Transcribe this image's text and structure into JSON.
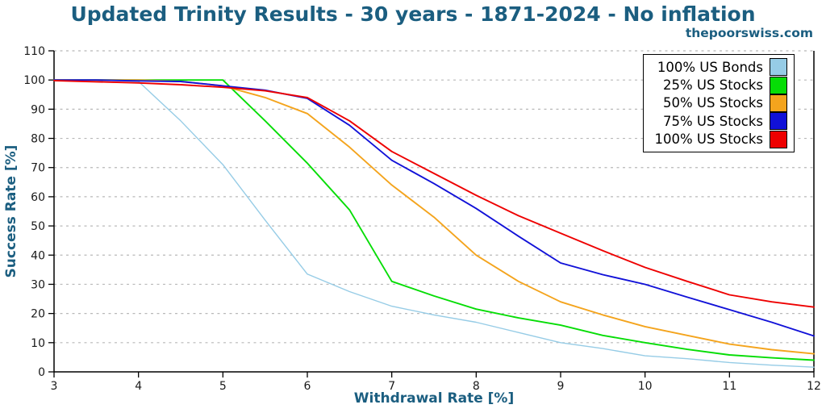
{
  "watermark": "thepoorswiss.com",
  "colors": {
    "title_text": "#1b5e80",
    "grid": "#b8b8b8",
    "spine": "#000000",
    "tick_text": "#1a1a1a",
    "legend_border": "#000000",
    "background": "#ffffff"
  },
  "chart_data": {
    "type": "line",
    "title": "Updated Trinity Results - 30 years - 1871-2024 - No inflation",
    "subtitle": "thepoorswiss.com",
    "xlabel": "Withdrawal Rate [%]",
    "ylabel": "Success Rate [%]",
    "xlim": [
      3,
      12
    ],
    "ylim": [
      0,
      110
    ],
    "xtick_step": 1,
    "ytick_step": 10,
    "grid": "horizontal-dashed",
    "legend_position": "top-right",
    "x": [
      3,
      3.5,
      4,
      4.5,
      5,
      5.5,
      6,
      6.5,
      7,
      7.5,
      8,
      8.5,
      9,
      9.5,
      10,
      10.5,
      11,
      11.5,
      12
    ],
    "series": [
      {
        "name": "100% US Bonds",
        "color": "#96cce6",
        "width": 1.4,
        "values": [
          100,
          100,
          99.5,
          86,
          71,
          52,
          33.5,
          27.5,
          22.5,
          19.5,
          17,
          13.5,
          10,
          8,
          5.5,
          4.5,
          3.2,
          2.3,
          1.6
        ]
      },
      {
        "name": "25% US Stocks",
        "color": "#06dd06",
        "width": 1.9,
        "values": [
          100,
          100,
          100,
          100,
          100,
          86,
          71.5,
          55.5,
          31,
          26,
          21.5,
          18.5,
          16,
          12.5,
          10,
          7.7,
          5.8,
          4.8,
          4
        ]
      },
      {
        "name": "50% US Stocks",
        "color": "#f4a41d",
        "width": 1.9,
        "values": [
          100,
          100,
          100,
          99.5,
          98,
          94,
          88.5,
          77,
          64,
          53,
          40,
          31,
          24,
          19.5,
          15.5,
          12.5,
          9.5,
          7.6,
          6.2
        ]
      },
      {
        "name": "75% US Stocks",
        "color": "#1111d8",
        "width": 1.9,
        "values": [
          100,
          100,
          99.7,
          99.5,
          98,
          96.5,
          93.7,
          84.5,
          72.5,
          64.5,
          56,
          46.5,
          37.3,
          33.3,
          30,
          25.6,
          21.3,
          17,
          12.3
        ]
      },
      {
        "name": "100% US Stocks",
        "color": "#ee0000",
        "width": 1.9,
        "values": [
          99.8,
          99.4,
          99,
          98.4,
          97.5,
          96.3,
          94,
          86,
          75.5,
          68,
          60.5,
          53.5,
          47.5,
          41.5,
          35.8,
          31,
          26.4,
          24,
          22.2
        ]
      }
    ]
  }
}
